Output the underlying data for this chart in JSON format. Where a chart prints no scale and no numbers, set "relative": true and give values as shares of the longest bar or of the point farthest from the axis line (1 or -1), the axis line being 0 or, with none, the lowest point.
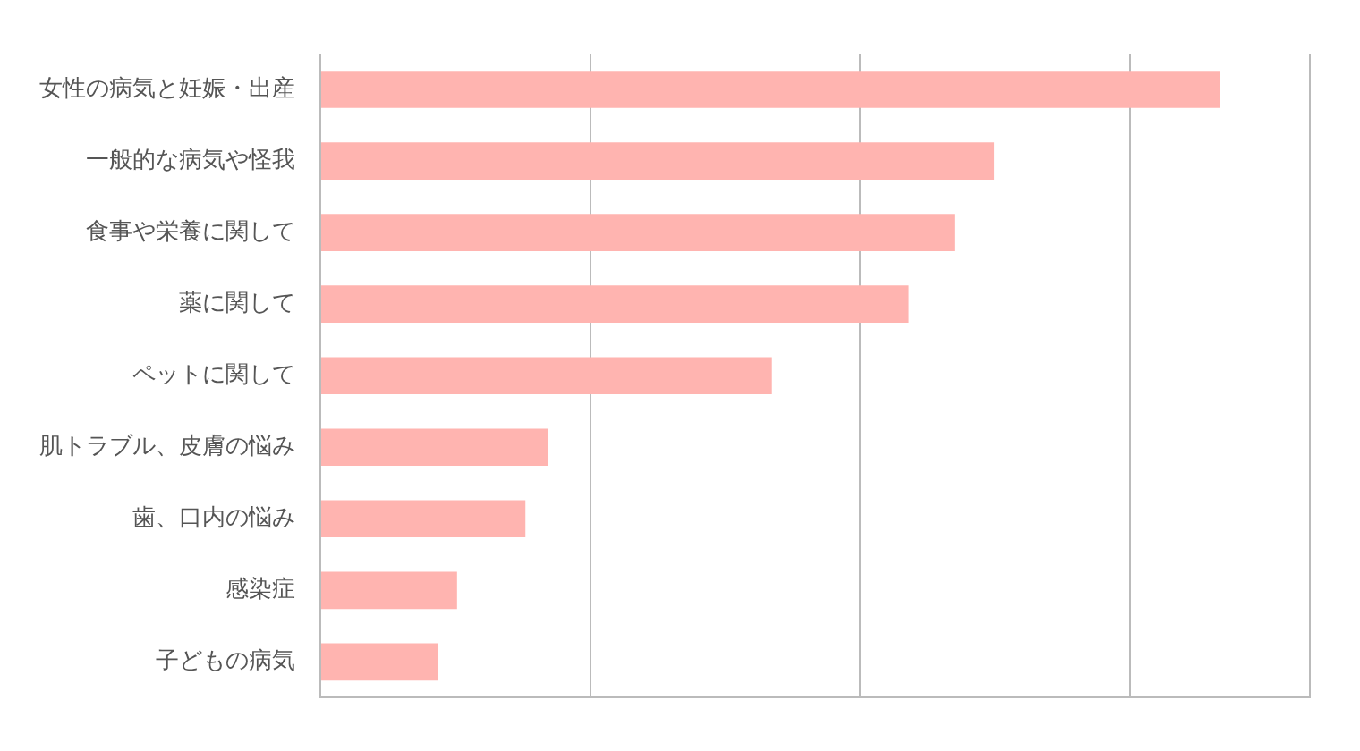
{
  "chart_data": {
    "type": "bar",
    "orientation": "horizontal",
    "relative": true,
    "grid": "x",
    "categories": [
      "女性の病気と妊娠・出産",
      "一般的な病気や怪我",
      "食事や栄養に関して",
      "薬に関して",
      "ペットに関して",
      "肌トラブル、皮膚の悩み",
      "歯、口内の悩み",
      "感染症",
      "子どもの病気"
    ],
    "values": [
      1,
      0.749,
      0.705,
      0.654,
      0.502,
      0.253,
      0.228,
      0.152,
      0.131
    ],
    "color": "#ffb4b0"
  }
}
